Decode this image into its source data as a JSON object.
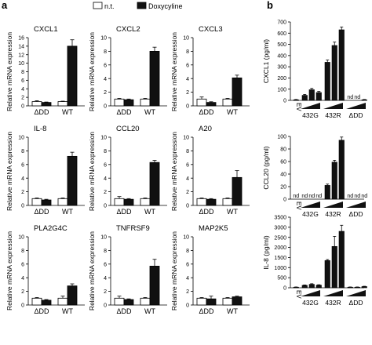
{
  "panel_labels": {
    "a": "a",
    "b": "b"
  },
  "legend": {
    "nt_label": "n.t.",
    "dox_label": "Doxycyline"
  },
  "a_panels_ylabel": "Relative mRNA expression",
  "b_groups": {
    "ev": "EV",
    "g432G": "432G",
    "g432R": "432R",
    "gDD": "ΔDD"
  },
  "b_nd": "nd",
  "chart_data": [
    {
      "type": "bar",
      "title": "CXCL1",
      "categories": [
        "ΔDD",
        "WT"
      ],
      "ylabel": "Relative mRNA expression",
      "ylim": [
        0,
        16
      ],
      "yticks": [
        0,
        2,
        4,
        6,
        8,
        10,
        12,
        14,
        16
      ],
      "series": [
        {
          "name": "n.t.",
          "values": [
            1.0,
            1.0
          ],
          "errors": [
            0.2,
            0.1
          ],
          "color": "#ffffff"
        },
        {
          "name": "Doxycyline",
          "values": [
            0.8,
            14.0
          ],
          "errors": [
            0.1,
            1.5
          ],
          "color": "#111111"
        }
      ]
    },
    {
      "type": "bar",
      "title": "CXCL2",
      "categories": [
        "ΔDD",
        "WT"
      ],
      "ylabel": "Relative mRNA expression",
      "ylim": [
        0,
        10
      ],
      "yticks": [
        0,
        2,
        4,
        6,
        8,
        10
      ],
      "series": [
        {
          "name": "n.t.",
          "values": [
            1.0,
            1.0
          ],
          "errors": [
            0.1,
            0.1
          ],
          "color": "#ffffff"
        },
        {
          "name": "Doxycyline",
          "values": [
            0.9,
            8.0
          ],
          "errors": [
            0.1,
            0.6
          ],
          "color": "#111111"
        }
      ]
    },
    {
      "type": "bar",
      "title": "CXCL3",
      "categories": [
        "ΔDD",
        "WT"
      ],
      "ylabel": "Relative mRNA expression",
      "ylim": [
        0,
        10
      ],
      "yticks": [
        0,
        2,
        4,
        6,
        8,
        10
      ],
      "series": [
        {
          "name": "n.t.",
          "values": [
            1.0,
            1.0
          ],
          "errors": [
            0.3,
            0.1
          ],
          "color": "#ffffff"
        },
        {
          "name": "Doxycyline",
          "values": [
            0.5,
            4.1
          ],
          "errors": [
            0.1,
            0.4
          ],
          "color": "#111111"
        }
      ]
    },
    {
      "type": "bar",
      "title": "IL-8",
      "categories": [
        "ΔDD",
        "WT"
      ],
      "ylabel": "Relative mRNA expression",
      "ylim": [
        0,
        10
      ],
      "yticks": [
        0,
        2,
        4,
        6,
        8,
        10
      ],
      "series": [
        {
          "name": "n.t.",
          "values": [
            1.0,
            1.0
          ],
          "errors": [
            0.1,
            0.1
          ],
          "color": "#ffffff"
        },
        {
          "name": "Doxycyline",
          "values": [
            0.8,
            7.2
          ],
          "errors": [
            0.1,
            0.6
          ],
          "color": "#111111"
        }
      ]
    },
    {
      "type": "bar",
      "title": "CCL20",
      "categories": [
        "ΔDD",
        "WT"
      ],
      "ylabel": "Relative mRNA expression",
      "ylim": [
        0,
        10
      ],
      "yticks": [
        0,
        2,
        4,
        6,
        8,
        10
      ],
      "series": [
        {
          "name": "n.t.",
          "values": [
            1.0,
            1.0
          ],
          "errors": [
            0.3,
            0.1
          ],
          "color": "#ffffff"
        },
        {
          "name": "Doxycyline",
          "values": [
            0.9,
            6.3
          ],
          "errors": [
            0.1,
            0.3
          ],
          "color": "#111111"
        }
      ]
    },
    {
      "type": "bar",
      "title": "A20",
      "categories": [
        "ΔDD",
        "WT"
      ],
      "ylabel": "Relative mRNA expression",
      "ylim": [
        0,
        10
      ],
      "yticks": [
        0,
        2,
        4,
        6,
        8,
        10
      ],
      "series": [
        {
          "name": "n.t.",
          "values": [
            1.0,
            1.0
          ],
          "errors": [
            0.1,
            0.1
          ],
          "color": "#ffffff"
        },
        {
          "name": "Doxycyline",
          "values": [
            0.9,
            4.1
          ],
          "errors": [
            0.1,
            1.0
          ],
          "color": "#111111"
        }
      ]
    },
    {
      "type": "bar",
      "title": "PLA2G4C",
      "categories": [
        "ΔDD",
        "WT"
      ],
      "ylabel": "Relative mRNA expression",
      "ylim": [
        0,
        10
      ],
      "yticks": [
        0,
        2,
        4,
        6,
        8,
        10
      ],
      "series": [
        {
          "name": "n.t.",
          "values": [
            1.0,
            1.0
          ],
          "errors": [
            0.1,
            0.3
          ],
          "color": "#ffffff"
        },
        {
          "name": "Doxycyline",
          "values": [
            0.7,
            2.8
          ],
          "errors": [
            0.1,
            0.3
          ],
          "color": "#111111"
        }
      ]
    },
    {
      "type": "bar",
      "title": "TNFRSF9",
      "categories": [
        "ΔDD",
        "WT"
      ],
      "ylabel": "Relative mRNA expression",
      "ylim": [
        0,
        10
      ],
      "yticks": [
        0,
        2,
        4,
        6,
        8,
        10
      ],
      "series": [
        {
          "name": "n.t.",
          "values": [
            1.0,
            1.0
          ],
          "errors": [
            0.3,
            0.1
          ],
          "color": "#ffffff"
        },
        {
          "name": "Doxycyline",
          "values": [
            0.8,
            5.7
          ],
          "errors": [
            0.1,
            1.0
          ],
          "color": "#111111"
        }
      ]
    },
    {
      "type": "bar",
      "title": "MAP2K5",
      "categories": [
        "ΔDD",
        "WT"
      ],
      "ylabel": "Relative mRNA expression",
      "ylim": [
        0,
        10
      ],
      "yticks": [
        0,
        2,
        4,
        6,
        8,
        10
      ],
      "series": [
        {
          "name": "n.t.",
          "values": [
            1.0,
            1.0
          ],
          "errors": [
            0.1,
            0.1
          ],
          "color": "#ffffff"
        },
        {
          "name": "Doxycyline",
          "values": [
            0.9,
            1.2
          ],
          "errors": [
            0.4,
            0.1
          ],
          "color": "#111111"
        }
      ]
    },
    {
      "type": "bar",
      "ylabel": "CXCL1 (pg/ml)",
      "ylim": [
        0,
        700
      ],
      "yticks": [
        0,
        100,
        200,
        300,
        400,
        500,
        600,
        700
      ],
      "categories": [
        "EV",
        "432G",
        "432G",
        "432G",
        "432R",
        "432R",
        "432R",
        "ΔDD",
        "ΔDD",
        "ΔDD"
      ],
      "values": [
        5,
        45,
        95,
        70,
        340,
        490,
        630,
        null,
        null,
        5
      ],
      "errors": [
        3,
        8,
        12,
        10,
        20,
        30,
        25,
        null,
        null,
        3
      ]
    },
    {
      "type": "bar",
      "ylabel": "CCL20 (pg/ml)",
      "ylim": [
        0,
        100
      ],
      "yticks": [
        0,
        20,
        40,
        60,
        80,
        100
      ],
      "categories": [
        "EV",
        "432G",
        "432G",
        "432G",
        "432R",
        "432R",
        "432R",
        "ΔDD",
        "ΔDD",
        "ΔDD"
      ],
      "values": [
        null,
        null,
        null,
        null,
        22,
        59,
        94,
        null,
        null,
        null
      ],
      "errors": [
        null,
        null,
        null,
        null,
        2,
        3,
        5,
        null,
        null,
        null
      ]
    },
    {
      "type": "bar",
      "ylabel": "IL-8 (pg/ml)",
      "ylim": [
        0,
        3500
      ],
      "yticks": [
        0,
        500,
        1000,
        1500,
        2000,
        2500,
        3000,
        3500
      ],
      "categories": [
        "EV",
        "432G",
        "432G",
        "432G",
        "432R",
        "432R",
        "432R",
        "ΔDD",
        "ΔDD",
        "ΔDD"
      ],
      "values": [
        30,
        120,
        170,
        130,
        1350,
        2050,
        2800,
        30,
        30,
        60
      ],
      "errors": [
        10,
        20,
        30,
        20,
        50,
        500,
        300,
        10,
        10,
        15
      ]
    }
  ]
}
